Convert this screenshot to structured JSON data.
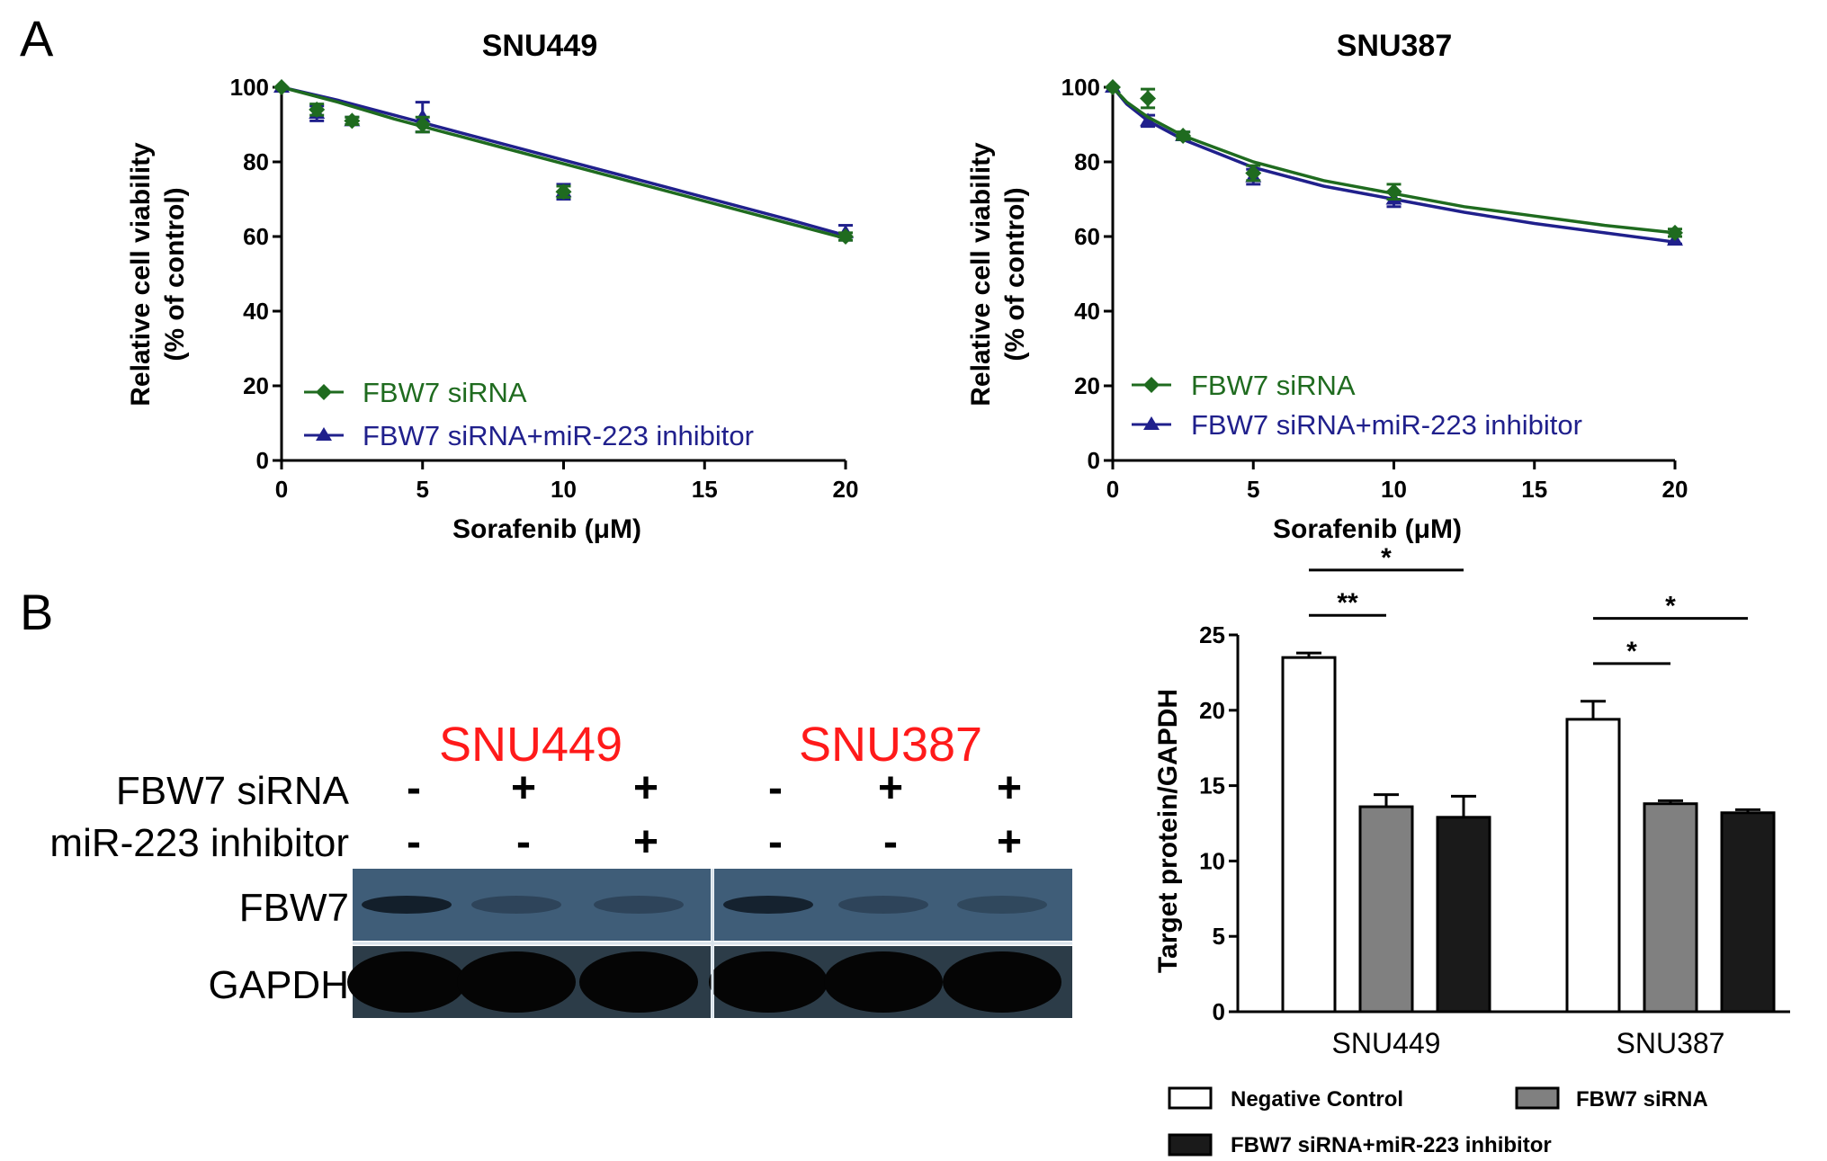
{
  "panel_labels": {
    "a": "A",
    "b": "B"
  },
  "colors": {
    "green": "#1f6b1f",
    "blue": "#20208c",
    "red": "#ff1a1a",
    "blot_bg": "#3f5d78"
  },
  "chart_data": [
    {
      "type": "line",
      "title": "SNU449",
      "xlabel": "Sorafenib (μM)",
      "ylabel_line1": "Relative cell viability",
      "ylabel_line2": "(% of control)",
      "xlim": [
        0,
        20
      ],
      "ylim": [
        0,
        100
      ],
      "xticks": [
        0,
        5,
        10,
        15,
        20
      ],
      "yticks": [
        0,
        20,
        40,
        60,
        80,
        100
      ],
      "x": [
        0,
        1.25,
        2.5,
        5,
        10,
        20
      ],
      "series": [
        {
          "name": "FBW7 siRNA",
          "marker": "diamond",
          "color": "#1f6b1f",
          "values": [
            100,
            94,
            91,
            90,
            72,
            60
          ],
          "errors": [
            0,
            1.5,
            1,
            2,
            1.5,
            1
          ],
          "fit": [
            [
              0,
              100
            ],
            [
              2,
              96
            ],
            [
              4,
              91.5
            ],
            [
              6,
              87.5
            ],
            [
              8,
              83.5
            ],
            [
              10,
              79.5
            ],
            [
              12,
              75.5
            ],
            [
              14,
              71.5
            ],
            [
              16,
              67.5
            ],
            [
              18,
              63.5
            ],
            [
              20,
              59.5
            ]
          ]
        },
        {
          "name": "FBW7 siRNA+miR-223 inhibitor",
          "marker": "triangle",
          "color": "#20208c",
          "values": [
            100,
            93,
            91,
            92,
            72,
            61
          ],
          "errors": [
            0,
            2,
            1,
            4,
            2,
            2
          ],
          "fit": [
            [
              0,
              100
            ],
            [
              2,
              96.5
            ],
            [
              4,
              92.5
            ],
            [
              6,
              88.5
            ],
            [
              8,
              84.5
            ],
            [
              10,
              80.5
            ],
            [
              12,
              76.5
            ],
            [
              14,
              72.5
            ],
            [
              16,
              68.5
            ],
            [
              18,
              64.5
            ],
            [
              20,
              60.3
            ]
          ]
        }
      ],
      "legend": "bottom-left"
    },
    {
      "type": "line",
      "title": "SNU387",
      "xlabel": "Sorafenib (μM)",
      "ylabel_line1": "Relative cell viability",
      "ylabel_line2": "(% of control)",
      "xlim": [
        0,
        20
      ],
      "ylim": [
        0,
        100
      ],
      "xticks": [
        0,
        5,
        10,
        15,
        20
      ],
      "yticks": [
        0,
        20,
        40,
        60,
        80,
        100
      ],
      "x": [
        0,
        1.25,
        2.5,
        5,
        10,
        20
      ],
      "series": [
        {
          "name": "FBW7 siRNA",
          "marker": "diamond",
          "color": "#1f6b1f",
          "values": [
            100,
            97,
            87,
            77,
            72,
            61
          ],
          "errors": [
            0,
            2.5,
            1,
            2,
            2,
            1
          ],
          "fit": [
            [
              0,
              100
            ],
            [
              0.5,
              96
            ],
            [
              1.25,
              92
            ],
            [
              2.5,
              87
            ],
            [
              5,
              80
            ],
            [
              7.5,
              75
            ],
            [
              10,
              71.5
            ],
            [
              12.5,
              68
            ],
            [
              15,
              65.5
            ],
            [
              17.5,
              63
            ],
            [
              20,
              61
            ]
          ]
        },
        {
          "name": "FBW7 siRNA+miR-223 inhibitor",
          "marker": "triangle",
          "color": "#20208c",
          "values": [
            100,
            91,
            87,
            76,
            70,
            59
          ],
          "errors": [
            0,
            1.5,
            1,
            2,
            2,
            1
          ],
          "fit": [
            [
              0,
              100
            ],
            [
              0.5,
              95.5
            ],
            [
              1.25,
              91
            ],
            [
              2.5,
              86
            ],
            [
              5,
              78.5
            ],
            [
              7.5,
              73.5
            ],
            [
              10,
              70
            ],
            [
              12.5,
              66.5
            ],
            [
              15,
              63.5
            ],
            [
              17.5,
              61
            ],
            [
              20,
              58.5
            ]
          ]
        }
      ],
      "legend": "bottom-left"
    },
    {
      "type": "bar",
      "title": "",
      "xlabel": "",
      "ylabel": "Target protein/GAPDH",
      "ylim": [
        0,
        25
      ],
      "yticks": [
        0,
        5,
        10,
        15,
        20,
        25
      ],
      "categories": [
        "SNU449",
        "SNU387"
      ],
      "series": [
        {
          "name": "Negative Control",
          "color": "#ffffff",
          "values": [
            23.5,
            19.4
          ],
          "errors": [
            0.3,
            1.2
          ]
        },
        {
          "name": "FBW7 siRNA",
          "color": "#808080",
          "values": [
            13.6,
            13.8
          ],
          "errors": [
            0.8,
            0.2
          ]
        },
        {
          "name": "FBW7 siRNA+miR-223 inhibitor",
          "color": "#1a1a1a",
          "values": [
            12.9,
            13.2
          ],
          "errors": [
            1.4,
            0.2
          ]
        }
      ],
      "significance": [
        {
          "category": 0,
          "from": 0,
          "to": 1,
          "label": "**"
        },
        {
          "category": 0,
          "from": 0,
          "to": 2,
          "label": "*"
        },
        {
          "category": 1,
          "from": 0,
          "to": 1,
          "label": "*"
        },
        {
          "category": 1,
          "from": 0,
          "to": 2,
          "label": "*"
        }
      ],
      "legend": "bottom"
    }
  ],
  "blot": {
    "cell_lines": [
      "SNU449",
      "SNU387"
    ],
    "row_labels": [
      "FBW7 siRNA",
      "miR-223 inhibitor"
    ],
    "lane_signs": [
      [
        "-",
        "+",
        "+",
        "-",
        "+",
        "+"
      ],
      [
        "-",
        "-",
        "+",
        "-",
        "-",
        "+"
      ]
    ],
    "bands": [
      "FBW7",
      "GAPDH"
    ],
    "fbw7_intensity": [
      0.9,
      0.35,
      0.35,
      0.85,
      0.35,
      0.3
    ]
  }
}
